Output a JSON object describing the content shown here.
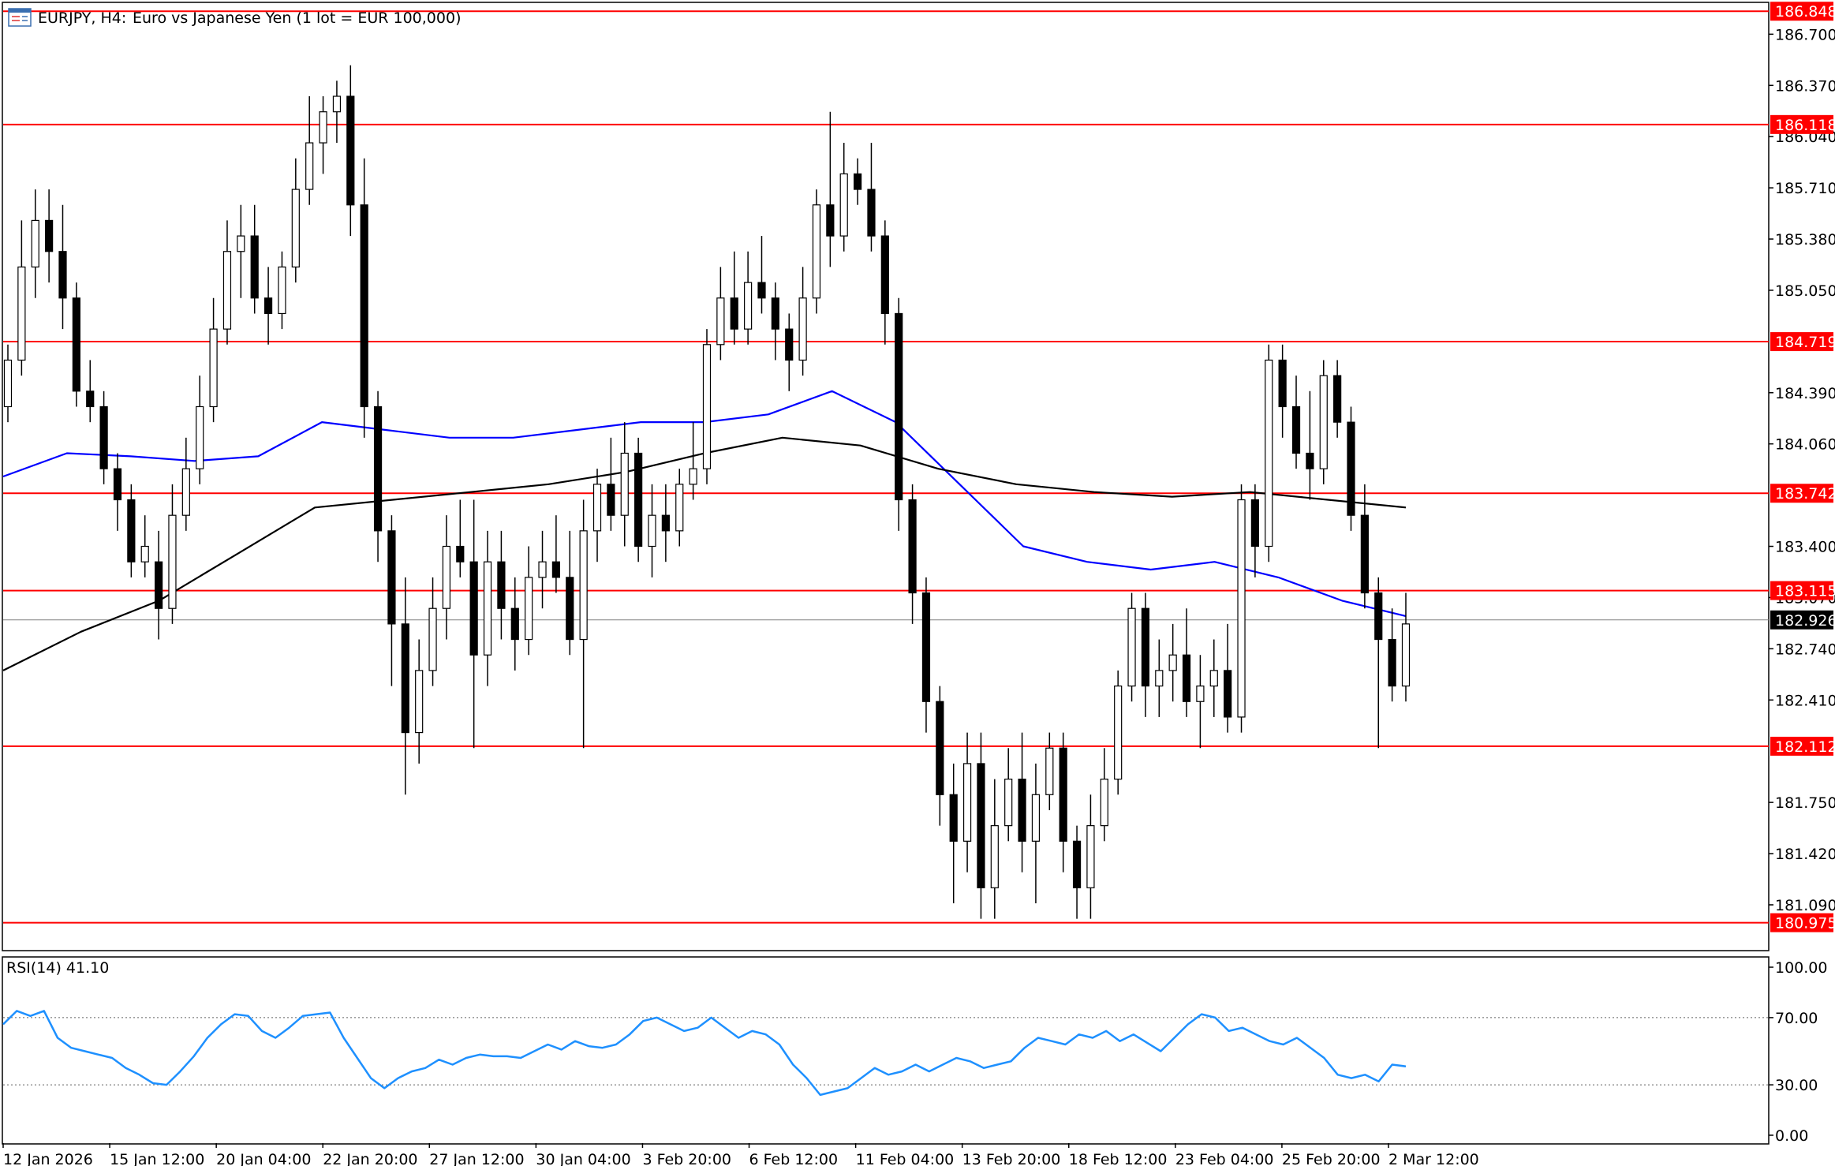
{
  "header": {
    "symbol": "EURJPY, H4:",
    "description": "Euro vs Japanese Yen (1 lot = EUR 100,000)",
    "icon": "window-icon"
  },
  "colors": {
    "background": "#ffffff",
    "frame": "#000000",
    "grid": "#c0c0c0",
    "level_line": "#ff0000",
    "level_label_bg": "#ff0000",
    "level_label_text": "#ffffff",
    "price_line": "#808080",
    "price_label_bg": "#000000",
    "ma_fast": "#0000ff",
    "ma_slow": "#000000",
    "rsi_line": "#1e90ff",
    "bull_candle": "#ffffff",
    "bear_candle": "#000000"
  },
  "chart_data": [
    {
      "type": "candlestick",
      "title": "EURJPY, H4:  Euro vs Japanese Yen (1 lot = EUR 100,000)",
      "y_range": [
        180.8,
        186.9
      ],
      "y_ticks": [
        "186.700",
        "186.370",
        "186.040",
        "185.710",
        "185.380",
        "185.050",
        "184.390",
        "184.060",
        "183.400",
        "183.070",
        "182.740",
        "182.410",
        "181.750",
        "181.420",
        "181.090"
      ],
      "x_ticks": [
        "12 Jan 2026",
        "15 Jan 12:00",
        "20 Jan 04:00",
        "22 Jan 20:00",
        "27 Jan 12:00",
        "30 Jan 04:00",
        "3 Feb 20:00",
        "6 Feb 12:00",
        "11 Feb 04:00",
        "13 Feb 20:00",
        "18 Feb 12:00",
        "23 Feb 04:00",
        "25 Feb 20:00",
        "2 Mar 12:00"
      ],
      "horizontal_levels": [
        {
          "label": "186.848",
          "value": 186.848
        },
        {
          "label": "186.118",
          "value": 186.118
        },
        {
          "label": "184.719",
          "value": 184.719
        },
        {
          "label": "183.742",
          "value": 183.742
        },
        {
          "label": "183.115",
          "value": 183.115
        },
        {
          "label": "182.112",
          "value": 182.112
        },
        {
          "label": "180.975",
          "value": 180.975
        }
      ],
      "current_price": {
        "label": "182.926",
        "value": 182.926
      },
      "moving_averages": [
        {
          "color": "blue",
          "values": [
            183.85,
            184.0,
            183.98,
            183.95,
            183.98,
            184.2,
            184.15,
            184.1,
            184.1,
            184.15,
            184.2,
            184.2,
            184.25,
            184.4,
            184.2,
            183.8,
            183.4,
            183.3,
            183.25,
            183.3,
            183.2,
            183.05,
            182.95
          ]
        },
        {
          "color": "black",
          "values": [
            182.6,
            182.85,
            183.05,
            183.35,
            183.65,
            183.7,
            183.75,
            183.8,
            183.88,
            184.0,
            184.1,
            184.05,
            183.9,
            183.8,
            183.75,
            183.72,
            183.75,
            183.7,
            183.65
          ]
        }
      ],
      "candles": [
        [
          184.3,
          184.7,
          184.2,
          184.6
        ],
        [
          184.6,
          185.5,
          184.5,
          185.2
        ],
        [
          185.2,
          185.7,
          185.0,
          185.5
        ],
        [
          185.5,
          185.7,
          185.1,
          185.3
        ],
        [
          185.3,
          185.6,
          184.8,
          185.0
        ],
        [
          185.0,
          185.1,
          184.3,
          184.4
        ],
        [
          184.4,
          184.6,
          184.2,
          184.3
        ],
        [
          184.3,
          184.4,
          183.8,
          183.9
        ],
        [
          183.9,
          184.0,
          183.5,
          183.7
        ],
        [
          183.7,
          183.8,
          183.2,
          183.3
        ],
        [
          183.3,
          183.6,
          183.2,
          183.4
        ],
        [
          183.3,
          183.5,
          182.8,
          183.0
        ],
        [
          183.0,
          183.8,
          182.9,
          183.6
        ],
        [
          183.6,
          184.1,
          183.5,
          183.9
        ],
        [
          183.9,
          184.5,
          183.8,
          184.3
        ],
        [
          184.3,
          185.0,
          184.2,
          184.8
        ],
        [
          184.8,
          185.5,
          184.7,
          185.3
        ],
        [
          185.3,
          185.6,
          185.0,
          185.4
        ],
        [
          185.4,
          185.6,
          184.9,
          185.0
        ],
        [
          185.0,
          185.2,
          184.7,
          184.9
        ],
        [
          184.9,
          185.3,
          184.8,
          185.2
        ],
        [
          185.2,
          185.9,
          185.1,
          185.7
        ],
        [
          185.7,
          186.3,
          185.6,
          186.0
        ],
        [
          186.0,
          186.3,
          185.8,
          186.2
        ],
        [
          186.2,
          186.4,
          186.0,
          186.3
        ],
        [
          186.3,
          186.5,
          185.4,
          185.6
        ],
        [
          185.6,
          185.9,
          184.1,
          184.3
        ],
        [
          184.3,
          184.4,
          183.3,
          183.5
        ],
        [
          183.5,
          183.6,
          182.5,
          182.9
        ],
        [
          182.9,
          183.2,
          181.8,
          182.2
        ],
        [
          182.2,
          182.8,
          182.0,
          182.6
        ],
        [
          182.6,
          183.2,
          182.5,
          183.0
        ],
        [
          183.0,
          183.6,
          182.8,
          183.4
        ],
        [
          183.4,
          183.7,
          183.2,
          183.3
        ],
        [
          183.3,
          183.7,
          182.1,
          182.7
        ],
        [
          182.7,
          183.5,
          182.5,
          183.3
        ],
        [
          183.3,
          183.5,
          182.8,
          183.0
        ],
        [
          183.0,
          183.2,
          182.6,
          182.8
        ],
        [
          182.8,
          183.4,
          182.7,
          183.2
        ],
        [
          183.2,
          183.5,
          183.0,
          183.3
        ],
        [
          183.3,
          183.6,
          183.1,
          183.2
        ],
        [
          183.2,
          183.5,
          182.7,
          182.8
        ],
        [
          182.8,
          183.7,
          182.1,
          183.5
        ],
        [
          183.5,
          183.9,
          183.3,
          183.8
        ],
        [
          183.8,
          184.1,
          183.5,
          183.6
        ],
        [
          183.6,
          184.2,
          183.4,
          184.0
        ],
        [
          184.0,
          184.1,
          183.3,
          183.4
        ],
        [
          183.4,
          183.8,
          183.2,
          183.6
        ],
        [
          183.6,
          183.8,
          183.3,
          183.5
        ],
        [
          183.5,
          183.9,
          183.4,
          183.8
        ],
        [
          183.8,
          184.2,
          183.7,
          183.9
        ],
        [
          183.9,
          184.8,
          183.8,
          184.7
        ],
        [
          184.7,
          185.2,
          184.6,
          185.0
        ],
        [
          185.0,
          185.3,
          184.7,
          184.8
        ],
        [
          184.8,
          185.3,
          184.7,
          185.1
        ],
        [
          185.1,
          185.4,
          184.9,
          185.0
        ],
        [
          185.0,
          185.1,
          184.6,
          184.8
        ],
        [
          184.8,
          184.9,
          184.4,
          184.6
        ],
        [
          184.6,
          185.2,
          184.5,
          185.0
        ],
        [
          185.0,
          185.7,
          184.9,
          185.6
        ],
        [
          185.6,
          186.2,
          185.2,
          185.4
        ],
        [
          185.4,
          186.0,
          185.3,
          185.8
        ],
        [
          185.8,
          185.9,
          185.6,
          185.7
        ],
        [
          185.7,
          186.0,
          185.3,
          185.4
        ],
        [
          185.4,
          185.5,
          184.7,
          184.9
        ],
        [
          184.9,
          185.0,
          183.5,
          183.7
        ],
        [
          183.7,
          183.8,
          182.9,
          183.1
        ],
        [
          183.1,
          183.2,
          182.2,
          182.4
        ],
        [
          182.4,
          182.5,
          181.6,
          181.8
        ],
        [
          181.8,
          182.0,
          181.1,
          181.5
        ],
        [
          181.5,
          182.2,
          181.3,
          182.0
        ],
        [
          182.0,
          182.2,
          181.0,
          181.2
        ],
        [
          181.2,
          181.9,
          181.0,
          181.6
        ],
        [
          181.6,
          182.1,
          181.5,
          181.9
        ],
        [
          181.9,
          182.2,
          181.3,
          181.5
        ],
        [
          181.5,
          182.0,
          181.1,
          181.8
        ],
        [
          181.8,
          182.2,
          181.7,
          182.1
        ],
        [
          182.1,
          182.2,
          181.3,
          181.5
        ],
        [
          181.5,
          181.6,
          181.0,
          181.2
        ],
        [
          181.2,
          181.8,
          181.0,
          181.6
        ],
        [
          181.6,
          182.1,
          181.5,
          181.9
        ],
        [
          181.9,
          182.6,
          181.8,
          182.5
        ],
        [
          182.5,
          183.1,
          182.4,
          183.0
        ],
        [
          183.0,
          183.1,
          182.3,
          182.5
        ],
        [
          182.5,
          182.8,
          182.3,
          182.6
        ],
        [
          182.6,
          182.9,
          182.4,
          182.7
        ],
        [
          182.7,
          183.0,
          182.3,
          182.4
        ],
        [
          182.4,
          182.7,
          182.1,
          182.5
        ],
        [
          182.5,
          182.8,
          182.3,
          182.6
        ],
        [
          182.6,
          182.9,
          182.2,
          182.3
        ],
        [
          182.3,
          183.8,
          182.2,
          183.7
        ],
        [
          183.7,
          183.8,
          183.2,
          183.4
        ],
        [
          183.4,
          184.7,
          183.3,
          184.6
        ],
        [
          184.6,
          184.7,
          184.1,
          184.3
        ],
        [
          184.3,
          184.5,
          183.9,
          184.0
        ],
        [
          184.0,
          184.4,
          183.7,
          183.9
        ],
        [
          183.9,
          184.6,
          183.8,
          184.5
        ],
        [
          184.5,
          184.6,
          184.1,
          184.2
        ],
        [
          184.2,
          184.3,
          183.5,
          183.6
        ],
        [
          183.6,
          183.8,
          183.0,
          183.1
        ],
        [
          183.1,
          183.2,
          182.1,
          182.8
        ],
        [
          182.8,
          183.0,
          182.4,
          182.5
        ],
        [
          182.5,
          183.1,
          182.4,
          182.9
        ]
      ]
    },
    {
      "type": "line",
      "title": "RSI(14) 41.10",
      "y_range": [
        0,
        100
      ],
      "y_ticks": [
        "100.00",
        "70.00",
        "30.00",
        "0.00"
      ],
      "levels": [
        70,
        30
      ],
      "values": [
        66,
        74,
        71,
        74,
        58,
        52,
        50,
        48,
        46,
        40,
        36,
        31,
        30,
        38,
        47,
        58,
        66,
        72,
        71,
        62,
        58,
        64,
        71,
        72,
        73,
        58,
        46,
        34,
        28,
        34,
        38,
        40,
        45,
        42,
        46,
        48,
        47,
        47,
        46,
        50,
        54,
        51,
        56,
        53,
        52,
        54,
        60,
        68,
        70,
        66,
        62,
        64,
        70,
        64,
        58,
        62,
        60,
        54,
        42,
        34,
        24,
        26,
        28,
        34,
        40,
        36,
        38,
        42,
        38,
        42,
        46,
        44,
        40,
        42,
        44,
        52,
        58,
        56,
        54,
        60,
        58,
        62,
        56,
        60,
        55,
        50,
        58,
        66,
        72,
        70,
        62,
        64,
        60,
        56,
        54,
        58,
        52,
        46,
        36,
        34,
        36,
        32,
        42,
        41
      ]
    }
  ]
}
